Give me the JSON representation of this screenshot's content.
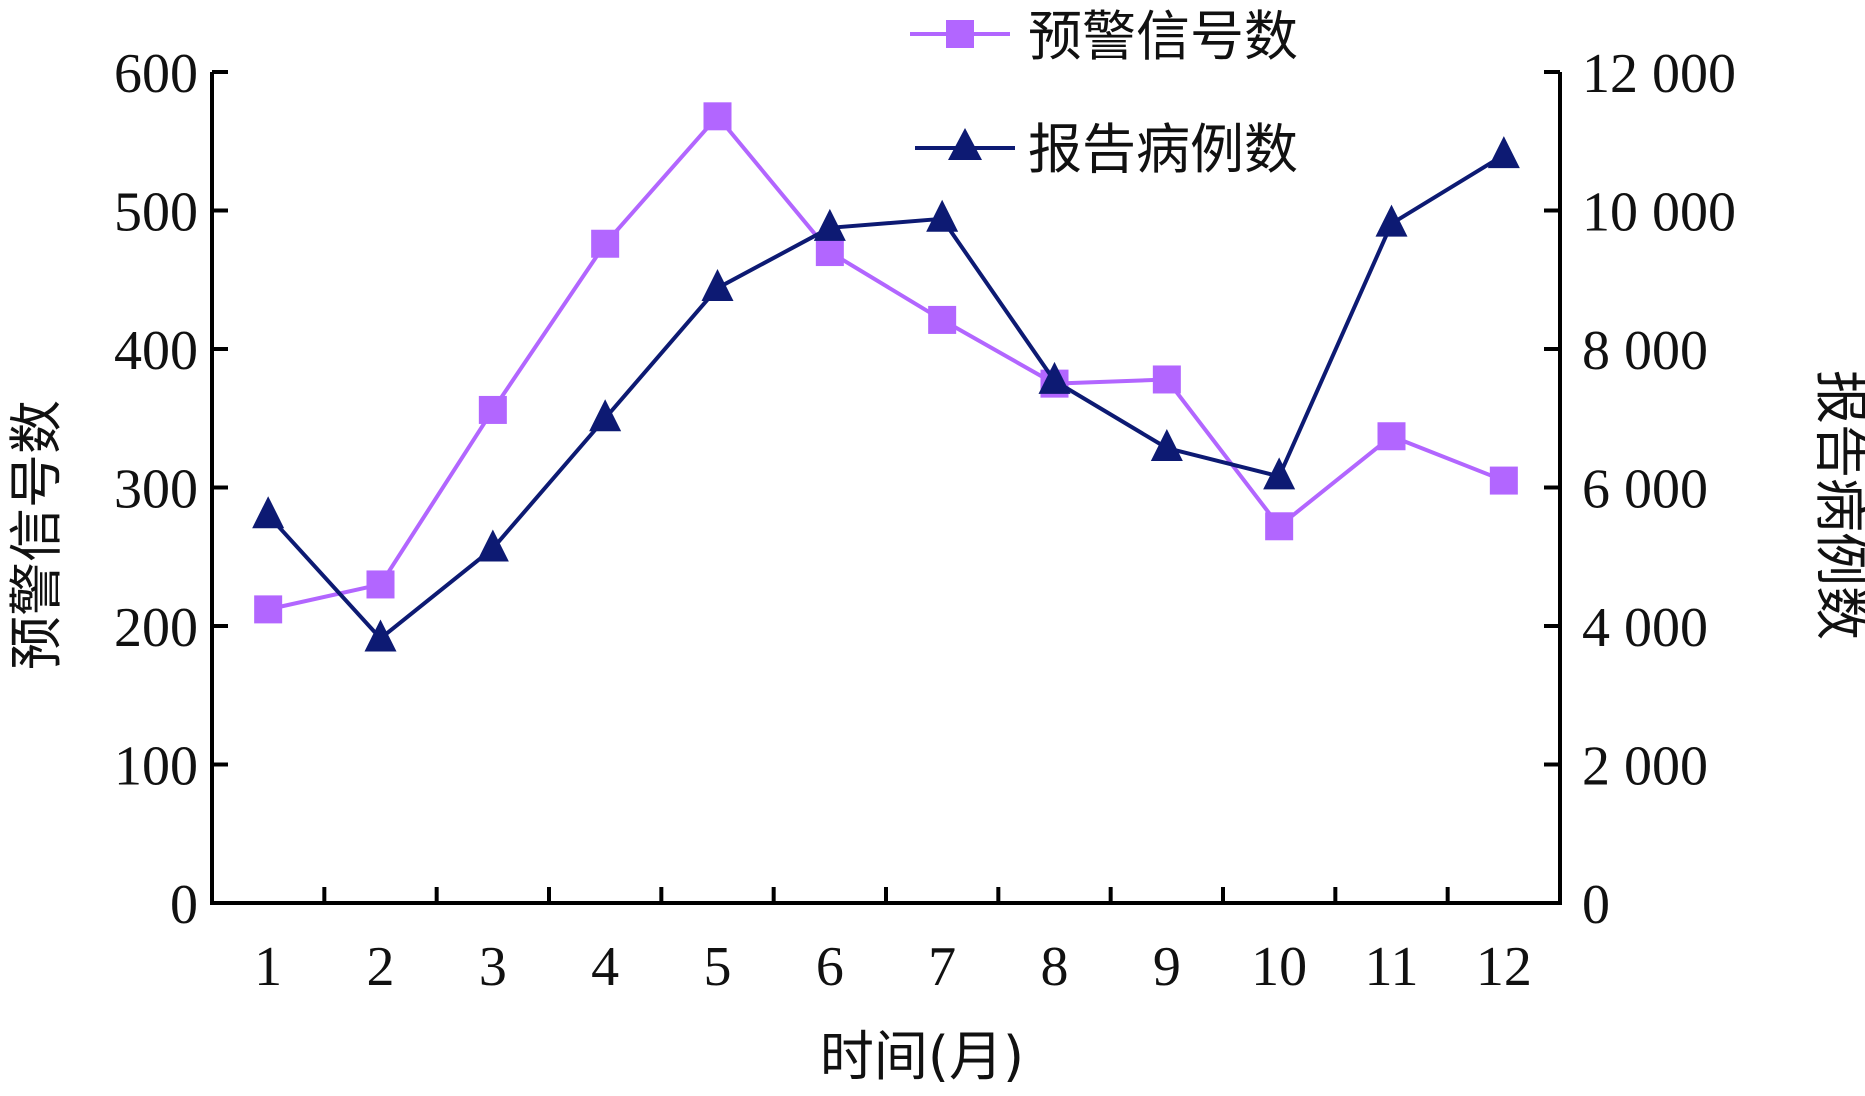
{
  "chart_data": {
    "type": "line",
    "x": [
      1,
      2,
      3,
      4,
      5,
      6,
      7,
      8,
      9,
      10,
      11,
      12
    ],
    "xlabel": "时间(月)",
    "ylabel_left": "预警信号数",
    "ylabel_right": "报告病例数",
    "ylim_left": [
      0,
      600
    ],
    "ylim_right": [
      0,
      12000
    ],
    "yticks_left": [
      "0",
      "100",
      "200",
      "300",
      "400",
      "500",
      "600"
    ],
    "yticks_right": [
      "0",
      "2 000",
      "4 000",
      "6 000",
      "8 000",
      "10 000",
      "12 000"
    ],
    "xticks": [
      "1",
      "2",
      "3",
      "4",
      "5",
      "6",
      "7",
      "8",
      "9",
      "10",
      "11",
      "12"
    ],
    "grid": false,
    "legend_position": "top-right",
    "series": [
      {
        "name": "预警信号数",
        "axis": "left",
        "marker": "square",
        "color": "#b266ff",
        "values": [
          212,
          230,
          356,
          476,
          568,
          470,
          421,
          375,
          378,
          272,
          337,
          305
        ]
      },
      {
        "name": "报告病例数",
        "axis": "right",
        "marker": "triangle",
        "color": "#0d1a73",
        "values": [
          5600,
          3820,
          5120,
          7000,
          8880,
          9750,
          9880,
          7540,
          6570,
          6160,
          9810,
          10800
        ]
      }
    ]
  }
}
